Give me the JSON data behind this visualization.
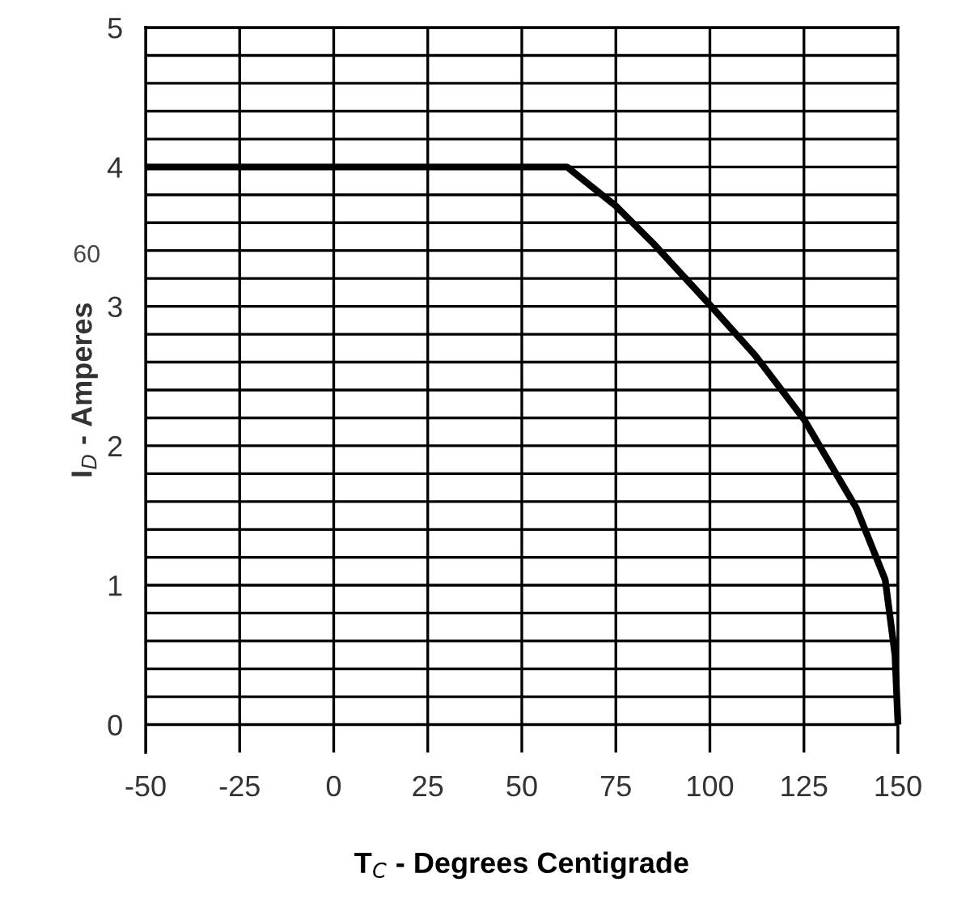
{
  "chart_data": {
    "type": "line",
    "xlabel": "T$_{C}$ - Degrees Centigrade",
    "ylabel": "I$_{D}$ - Amperes",
    "annotations": [
      "60"
    ],
    "x": [
      -50,
      25,
      62,
      75,
      85,
      100,
      112,
      125,
      139,
      146.6,
      149.2,
      150
    ],
    "series": [
      {
        "color": "#000000",
        "values": [
          4,
          4,
          4,
          3.72,
          3.45,
          3.01,
          2.65,
          2.19,
          1.55,
          1.04,
          0.5,
          0
        ]
      }
    ],
    "xlim": [
      -50,
      150
    ],
    "ylim": [
      -0.2,
      5
    ],
    "xticks": [
      -50,
      -25,
      0,
      25,
      50,
      75,
      100,
      125,
      150
    ],
    "yticks": [
      0,
      {
        "value": 0.2,
        "label": null
      },
      {
        "value": 0.4,
        "label": null
      },
      {
        "value": 0.6,
        "label": null
      },
      {
        "value": 0.8,
        "label": null
      },
      1,
      {
        "value": 1.2,
        "label": null
      },
      {
        "value": 1.4,
        "label": null
      },
      {
        "value": 1.6,
        "label": null
      },
      {
        "value": 1.8,
        "label": null
      },
      2,
      {
        "value": 2.2,
        "label": null
      },
      {
        "value": 2.4,
        "label": null
      },
      {
        "value": 2.6,
        "label": null
      },
      {
        "value": 2.8,
        "label": null
      },
      3,
      {
        "value": 3.2,
        "label": null
      },
      {
        "value": 3.4,
        "label": null
      },
      {
        "value": 3.6,
        "label": null
      },
      {
        "value": 3.8,
        "label": null
      },
      4,
      {
        "value": 4.2,
        "label": null
      },
      {
        "value": 4.4,
        "label": null
      },
      {
        "value": 4.6,
        "label": null
      },
      {
        "value": 4.8,
        "label": null
      },
      5
    ],
    "grid": true,
    "marker": "none",
    "line_style": "solid"
  }
}
